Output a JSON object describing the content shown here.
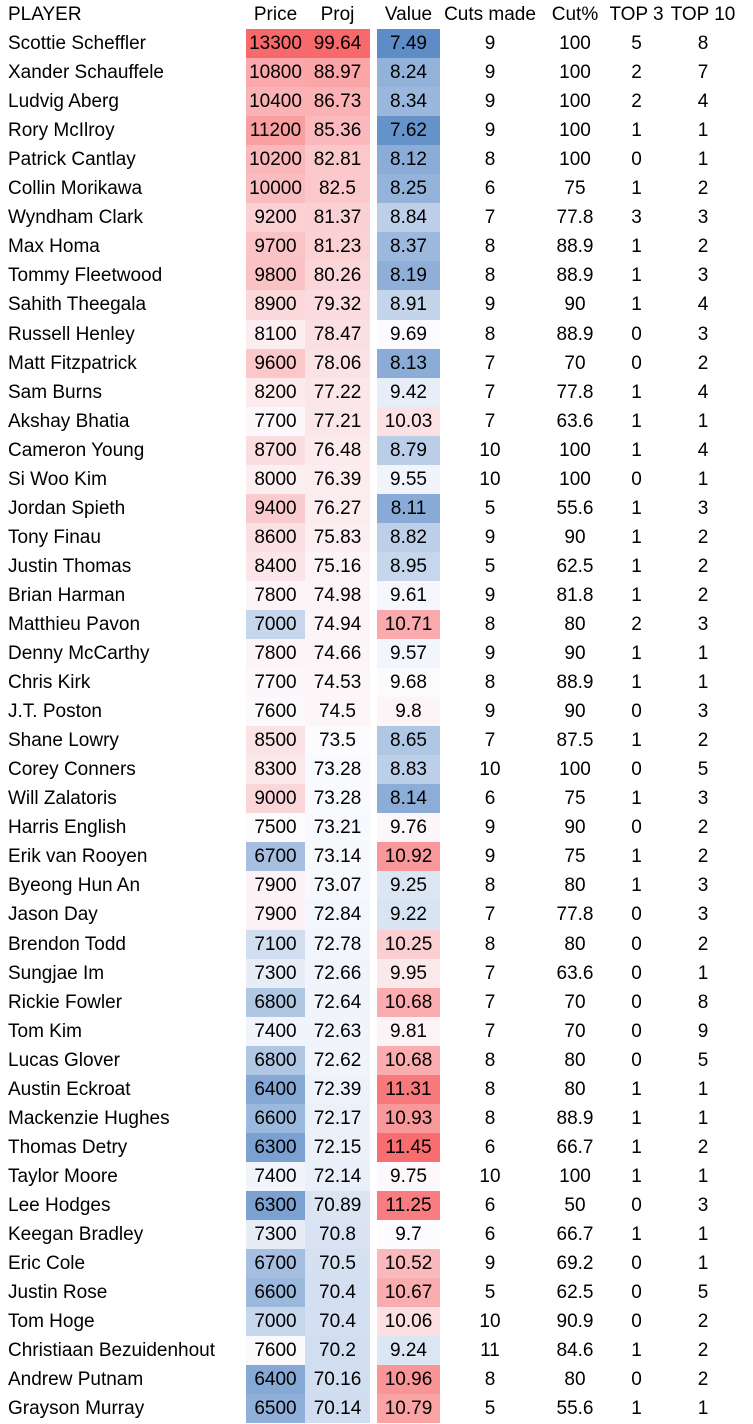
{
  "app": {
    "type": "spreadsheet-table",
    "background": "#FFFFFF",
    "text_color": "#000000"
  },
  "table": {
    "columns": [
      {
        "key": "name",
        "label": "PLAYER",
        "align": "left"
      },
      {
        "key": "price",
        "label": "Price",
        "align": "center",
        "scale": "price"
      },
      {
        "key": "proj",
        "label": "Proj",
        "align": "center",
        "scale": "proj"
      },
      {
        "key": "spacer",
        "label": "",
        "align": "center"
      },
      {
        "key": "value",
        "label": "Value",
        "align": "center",
        "scale": "value"
      },
      {
        "key": "cuts",
        "label": "Cuts made",
        "align": "center"
      },
      {
        "key": "cutpct",
        "label": "Cut%",
        "align": "center"
      },
      {
        "key": "top3",
        "label": "TOP 3",
        "align": "center"
      },
      {
        "key": "top10",
        "label": "TOP 10",
        "align": "center"
      }
    ],
    "colorscales": {
      "anchor_colors": {
        "low": "#5A8AC6",
        "mid": "#FCFCFF",
        "high": "#F8696B"
      },
      "price": {
        "min": {
          "value": 6000,
          "color": "#5A8AC6"
        },
        "mid": {
          "value": 7500,
          "color": "#FCFCFF"
        },
        "max": {
          "value": 13300,
          "color": "#F8696B"
        }
      },
      "proj": {
        "min": {
          "value": 61,
          "color": "#5A8AC6"
        },
        "mid": {
          "value": 73.5,
          "color": "#FCFCFF"
        },
        "max": {
          "value": 99.64,
          "color": "#F8696B"
        }
      },
      "value": {
        "min": {
          "value": 7.45,
          "color": "#5A8AC6"
        },
        "mid": {
          "value": 9.7,
          "color": "#FCFCFF"
        },
        "max": {
          "value": 11.5,
          "color": "#F8696B"
        }
      }
    },
    "players": [
      {
        "name": "Scottie Scheffler",
        "price": 13300,
        "proj": 99.64,
        "value": 7.49,
        "cuts": 9,
        "cutpct": 100,
        "top3": 5,
        "top10": 8
      },
      {
        "name": "Xander Schauffele",
        "price": 10800,
        "proj": 88.97,
        "value": 8.24,
        "cuts": 9,
        "cutpct": 100,
        "top3": 2,
        "top10": 7
      },
      {
        "name": "Ludvig Aberg",
        "price": 10400,
        "proj": 86.73,
        "value": 8.34,
        "cuts": 9,
        "cutpct": 100,
        "top3": 2,
        "top10": 4
      },
      {
        "name": "Rory McIlroy",
        "price": 11200,
        "proj": 85.36,
        "value": 7.62,
        "cuts": 9,
        "cutpct": 100,
        "top3": 1,
        "top10": 1
      },
      {
        "name": "Patrick Cantlay",
        "price": 10200,
        "proj": 82.81,
        "value": 8.12,
        "cuts": 8,
        "cutpct": 100,
        "top3": 0,
        "top10": 1
      },
      {
        "name": "Collin Morikawa",
        "price": 10000,
        "proj": 82.5,
        "value": 8.25,
        "cuts": 6,
        "cutpct": 75,
        "top3": 1,
        "top10": 2
      },
      {
        "name": "Wyndham Clark",
        "price": 9200,
        "proj": 81.37,
        "value": 8.84,
        "cuts": 7,
        "cutpct": 77.8,
        "top3": 3,
        "top10": 3
      },
      {
        "name": "Max Homa",
        "price": 9700,
        "proj": 81.23,
        "value": 8.37,
        "cuts": 8,
        "cutpct": 88.9,
        "top3": 1,
        "top10": 2
      },
      {
        "name": "Tommy Fleetwood",
        "price": 9800,
        "proj": 80.26,
        "value": 8.19,
        "cuts": 8,
        "cutpct": 88.9,
        "top3": 1,
        "top10": 3
      },
      {
        "name": "Sahith Theegala",
        "price": 8900,
        "proj": 79.32,
        "value": 8.91,
        "cuts": 9,
        "cutpct": 90,
        "top3": 1,
        "top10": 4
      },
      {
        "name": "Russell Henley",
        "price": 8100,
        "proj": 78.47,
        "value": 9.69,
        "cuts": 8,
        "cutpct": 88.9,
        "top3": 0,
        "top10": 3
      },
      {
        "name": "Matt Fitzpatrick",
        "price": 9600,
        "proj": 78.06,
        "value": 8.13,
        "cuts": 7,
        "cutpct": 70,
        "top3": 0,
        "top10": 2
      },
      {
        "name": "Sam Burns",
        "price": 8200,
        "proj": 77.22,
        "value": 9.42,
        "cuts": 7,
        "cutpct": 77.8,
        "top3": 1,
        "top10": 4
      },
      {
        "name": "Akshay Bhatia",
        "price": 7700,
        "proj": 77.21,
        "value": 10.03,
        "cuts": 7,
        "cutpct": 63.6,
        "top3": 1,
        "top10": 1
      },
      {
        "name": "Cameron Young",
        "price": 8700,
        "proj": 76.48,
        "value": 8.79,
        "cuts": 10,
        "cutpct": 100,
        "top3": 1,
        "top10": 4
      },
      {
        "name": "Si Woo Kim",
        "price": 8000,
        "proj": 76.39,
        "value": 9.55,
        "cuts": 10,
        "cutpct": 100,
        "top3": 0,
        "top10": 1
      },
      {
        "name": "Jordan Spieth",
        "price": 9400,
        "proj": 76.27,
        "value": 8.11,
        "cuts": 5,
        "cutpct": 55.6,
        "top3": 1,
        "top10": 3
      },
      {
        "name": "Tony Finau",
        "price": 8600,
        "proj": 75.83,
        "value": 8.82,
        "cuts": 9,
        "cutpct": 90,
        "top3": 1,
        "top10": 2
      },
      {
        "name": "Justin Thomas",
        "price": 8400,
        "proj": 75.16,
        "value": 8.95,
        "cuts": 5,
        "cutpct": 62.5,
        "top3": 1,
        "top10": 2
      },
      {
        "name": "Brian Harman",
        "price": 7800,
        "proj": 74.98,
        "value": 9.61,
        "cuts": 9,
        "cutpct": 81.8,
        "top3": 1,
        "top10": 2
      },
      {
        "name": "Matthieu Pavon",
        "price": 7000,
        "proj": 74.94,
        "value": 10.71,
        "cuts": 8,
        "cutpct": 80,
        "top3": 2,
        "top10": 3
      },
      {
        "name": "Denny McCarthy",
        "price": 7800,
        "proj": 74.66,
        "value": 9.57,
        "cuts": 9,
        "cutpct": 90,
        "top3": 1,
        "top10": 1
      },
      {
        "name": "Chris Kirk",
        "price": 7700,
        "proj": 74.53,
        "value": 9.68,
        "cuts": 8,
        "cutpct": 88.9,
        "top3": 1,
        "top10": 1
      },
      {
        "name": "J.T. Poston",
        "price": 7600,
        "proj": 74.5,
        "value": 9.8,
        "cuts": 9,
        "cutpct": 90,
        "top3": 0,
        "top10": 3
      },
      {
        "name": "Shane Lowry",
        "price": 8500,
        "proj": 73.5,
        "value": 8.65,
        "cuts": 7,
        "cutpct": 87.5,
        "top3": 1,
        "top10": 2
      },
      {
        "name": "Corey Conners",
        "price": 8300,
        "proj": 73.28,
        "value": 8.83,
        "cuts": 10,
        "cutpct": 100,
        "top3": 0,
        "top10": 5
      },
      {
        "name": "Will Zalatoris",
        "price": 9000,
        "proj": 73.28,
        "value": 8.14,
        "cuts": 6,
        "cutpct": 75,
        "top3": 1,
        "top10": 3
      },
      {
        "name": "Harris English",
        "price": 7500,
        "proj": 73.21,
        "value": 9.76,
        "cuts": 9,
        "cutpct": 90,
        "top3": 0,
        "top10": 2
      },
      {
        "name": "Erik van Rooyen",
        "price": 6700,
        "proj": 73.14,
        "value": 10.92,
        "cuts": 9,
        "cutpct": 75,
        "top3": 1,
        "top10": 2
      },
      {
        "name": "Byeong Hun An",
        "price": 7900,
        "proj": 73.07,
        "value": 9.25,
        "cuts": 8,
        "cutpct": 80,
        "top3": 1,
        "top10": 3
      },
      {
        "name": "Jason Day",
        "price": 7900,
        "proj": 72.84,
        "value": 9.22,
        "cuts": 7,
        "cutpct": 77.8,
        "top3": 0,
        "top10": 3
      },
      {
        "name": "Brendon Todd",
        "price": 7100,
        "proj": 72.78,
        "value": 10.25,
        "cuts": 8,
        "cutpct": 80,
        "top3": 0,
        "top10": 2
      },
      {
        "name": "Sungjae Im",
        "price": 7300,
        "proj": 72.66,
        "value": 9.95,
        "cuts": 7,
        "cutpct": 63.6,
        "top3": 0,
        "top10": 1
      },
      {
        "name": "Rickie Fowler",
        "price": 6800,
        "proj": 72.64,
        "value": 10.68,
        "cuts": 7,
        "cutpct": 70,
        "top3": 0,
        "top10": 8
      },
      {
        "name": "Tom Kim",
        "price": 7400,
        "proj": 72.63,
        "value": 9.81,
        "cuts": 7,
        "cutpct": 70,
        "top3": 0,
        "top10": 9
      },
      {
        "name": "Lucas Glover",
        "price": 6800,
        "proj": 72.62,
        "value": 10.68,
        "cuts": 8,
        "cutpct": 80,
        "top3": 0,
        "top10": 5
      },
      {
        "name": "Austin Eckroat",
        "price": 6400,
        "proj": 72.39,
        "value": 11.31,
        "cuts": 8,
        "cutpct": 80,
        "top3": 1,
        "top10": 1
      },
      {
        "name": "Mackenzie Hughes",
        "price": 6600,
        "proj": 72.17,
        "value": 10.93,
        "cuts": 8,
        "cutpct": 88.9,
        "top3": 1,
        "top10": 1
      },
      {
        "name": "Thomas Detry",
        "price": 6300,
        "proj": 72.15,
        "value": 11.45,
        "cuts": 6,
        "cutpct": 66.7,
        "top3": 1,
        "top10": 2
      },
      {
        "name": "Taylor Moore",
        "price": 7400,
        "proj": 72.14,
        "value": 9.75,
        "cuts": 10,
        "cutpct": 100,
        "top3": 1,
        "top10": 1
      },
      {
        "name": "Lee Hodges",
        "price": 6300,
        "proj": 70.89,
        "value": 11.25,
        "cuts": 6,
        "cutpct": 50,
        "top3": 0,
        "top10": 3
      },
      {
        "name": "Keegan Bradley",
        "price": 7300,
        "proj": 70.8,
        "value": 9.7,
        "cuts": 6,
        "cutpct": 66.7,
        "top3": 1,
        "top10": 1
      },
      {
        "name": "Eric Cole",
        "price": 6700,
        "proj": 70.5,
        "value": 10.52,
        "cuts": 9,
        "cutpct": 69.2,
        "top3": 0,
        "top10": 1
      },
      {
        "name": "Justin Rose",
        "price": 6600,
        "proj": 70.4,
        "value": 10.67,
        "cuts": 5,
        "cutpct": 62.5,
        "top3": 0,
        "top10": 5
      },
      {
        "name": "Tom Hoge",
        "price": 7000,
        "proj": 70.4,
        "value": 10.06,
        "cuts": 10,
        "cutpct": 90.9,
        "top3": 0,
        "top10": 2
      },
      {
        "name": "Christiaan Bezuidenhout",
        "price": 7600,
        "proj": 70.2,
        "value": 9.24,
        "cuts": 11,
        "cutpct": 84.6,
        "top3": 1,
        "top10": 2
      },
      {
        "name": "Andrew Putnam",
        "price": 6400,
        "proj": 70.16,
        "value": 10.96,
        "cuts": 8,
        "cutpct": 80,
        "top3": 0,
        "top10": 2
      },
      {
        "name": "Grayson Murray",
        "price": 6500,
        "proj": 70.14,
        "value": 10.79,
        "cuts": 5,
        "cutpct": 55.6,
        "top3": 1,
        "top10": 1
      }
    ]
  }
}
